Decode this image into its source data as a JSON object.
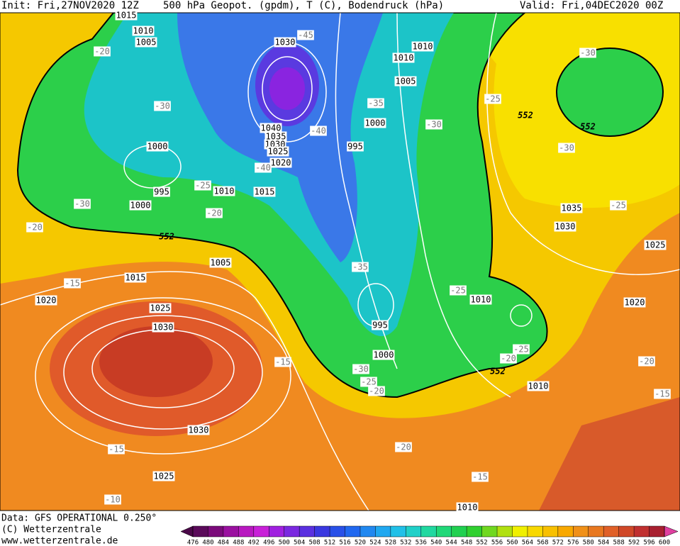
{
  "header": {
    "init": "Init: Fri,27NOV2020 12Z",
    "title": "500 hPa Geopot. (gpdm), T (C), Bodendruck (hPa)",
    "valid": "Valid: Fri,04DEC2020 00Z"
  },
  "footer": {
    "data": "Data: GFS OPERATIONAL 0.250°",
    "copyright": "(C) Wetterzentrale",
    "url": "www.wetterzentrale.de"
  },
  "map": {
    "pressure_labels": [
      "1015",
      "1010",
      "1005",
      "1030",
      "1010",
      "1010",
      "1005",
      "1000",
      "1040",
      "1035",
      "1030",
      "1025",
      "1020",
      "995",
      "1000",
      "1010",
      "1015",
      "995",
      "1000",
      "1005",
      "1015",
      "1020",
      "1025",
      "1030",
      "995",
      "1010",
      "1000",
      "1010",
      "1035",
      "1030",
      "1025",
      "1020",
      "1030",
      "1025",
      "1010"
    ],
    "temperature_labels": [
      "-45",
      "-20",
      "-30",
      "-35",
      "-40",
      "-30",
      "-25",
      "-30",
      "-30",
      "-40",
      "-25",
      "-30",
      "-20",
      "-20",
      "-25",
      "-35",
      "-15",
      "-25",
      "-20",
      "-25",
      "-15",
      "-30",
      "-25",
      "-20",
      "-20",
      "-15",
      "-20",
      "-15",
      "-15",
      "-10"
    ],
    "height_labels": [
      "552",
      "552",
      "552",
      "552"
    ]
  },
  "colorbar": {
    "ticks": [
      476,
      480,
      484,
      488,
      492,
      496,
      500,
      504,
      508,
      512,
      516,
      520,
      524,
      528,
      532,
      536,
      540,
      544,
      548,
      552,
      556,
      560,
      564,
      568,
      572,
      576,
      580,
      584,
      588,
      592,
      596,
      600
    ],
    "colors": [
      "#5a0a5a",
      "#7a0a7a",
      "#9a10a0",
      "#b818c0",
      "#c820d8",
      "#a020e0",
      "#7a28e0",
      "#5a30e0",
      "#3a38e0",
      "#2850e8",
      "#2068f0",
      "#2088f0",
      "#20a8f0",
      "#20c0e8",
      "#20d0c8",
      "#20d8a0",
      "#20d878",
      "#20d050",
      "#30d030",
      "#70d820",
      "#b0e010",
      "#f0f000",
      "#f8d800",
      "#f8c000",
      "#f8a800",
      "#f09018",
      "#e87820",
      "#e06028",
      "#d04828",
      "#c03030",
      "#a82030"
    ],
    "under_color": "#4a0848",
    "over_color": "#e040a0"
  }
}
